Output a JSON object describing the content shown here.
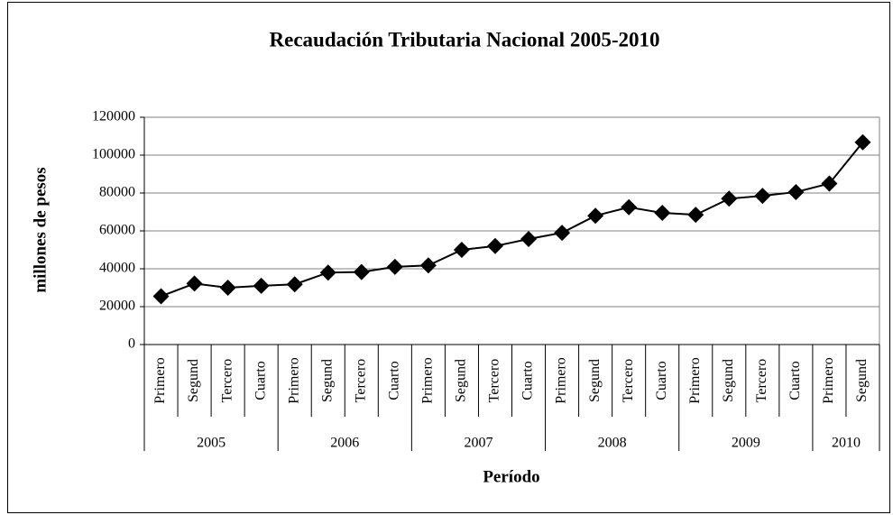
{
  "chart_data": {
    "type": "line",
    "title": "Recaudación Tributaria Nacional 2005-2010",
    "y_label": "millones de pesos",
    "x_label": "Período",
    "category_groups": [
      {
        "name": "2005",
        "categories": [
          "Primero",
          "Segund",
          "Tercero",
          "Cuarto"
        ]
      },
      {
        "name": "2006",
        "categories": [
          "Primero",
          "Segund",
          "Tercero",
          "Cuarto"
        ]
      },
      {
        "name": "2007",
        "categories": [
          "Primero",
          "Segund",
          "Tercero",
          "Cuarto"
        ]
      },
      {
        "name": "2008",
        "categories": [
          "Primero",
          "Segund",
          "Tercero",
          "Cuarto"
        ]
      },
      {
        "name": "2009",
        "categories": [
          "Primero",
          "Segund",
          "Tercero",
          "Cuarto"
        ]
      },
      {
        "name": "2010",
        "categories": [
          "Primero",
          "Segund"
        ]
      }
    ],
    "values": [
      25500,
      32200,
      30000,
      31000,
      31800,
      38000,
      38300,
      41000,
      41800,
      50000,
      52000,
      55700,
      59000,
      68000,
      72500,
      69500,
      68500,
      77000,
      78500,
      80500,
      85000,
      106800
    ],
    "color": "#000000",
    "ylim": [
      0,
      120000
    ],
    "yticks": [
      0,
      20000,
      40000,
      60000,
      80000,
      100000,
      120000
    ],
    "grid": true
  }
}
